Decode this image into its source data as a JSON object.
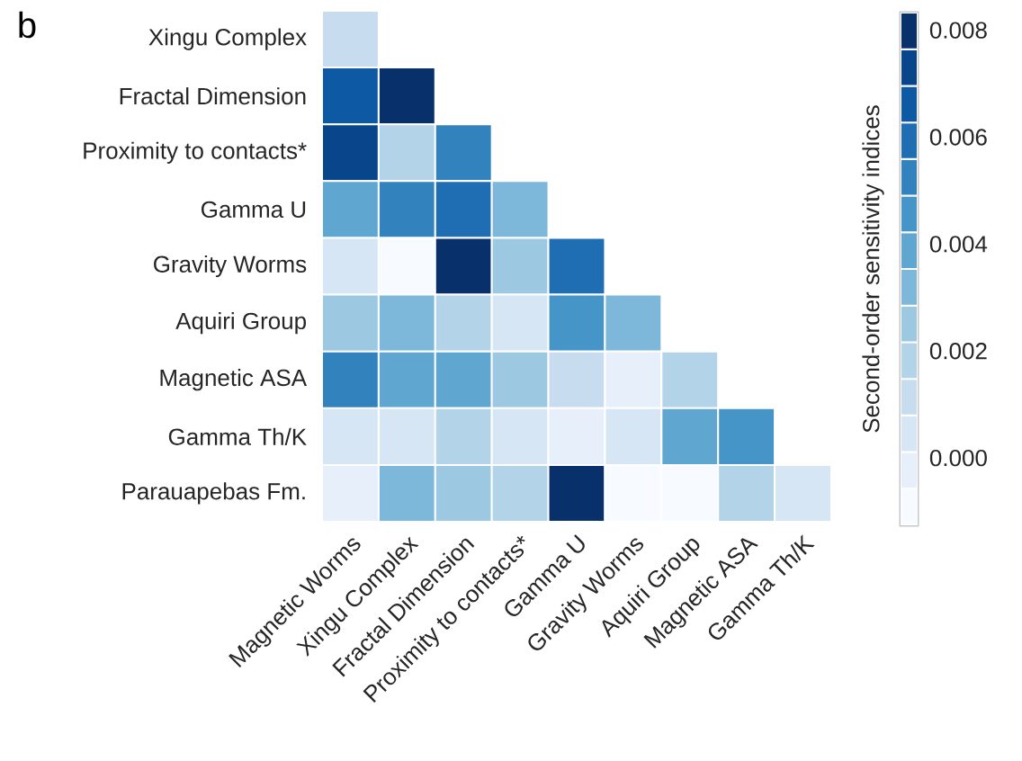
{
  "chart_data": {
    "type": "heatmap",
    "annotations": [
      "b"
    ],
    "categories": [
      "Magnetic Worms",
      "Xingu Complex",
      "Fractal Dimension",
      "Proximity to contacts*",
      "Gamma U",
      "Gravity Worms",
      "Aquiri Group",
      "Magnetic ASA",
      "Gamma Th/K"
    ],
    "y_categories": [
      "Xingu Complex",
      "Fractal Dimension",
      "Proximity to contacts*",
      "Gamma U",
      "Gravity Worms",
      "Aquiri Group",
      "Magnetic ASA",
      "Gamma Th/K",
      "Parauapebas Fm."
    ],
    "cells": [
      [
        0.0011,
        null,
        null,
        null,
        null,
        null,
        null,
        null,
        null
      ],
      [
        0.0066,
        0.008,
        null,
        null,
        null,
        null,
        null,
        null,
        null
      ],
      [
        0.0073,
        0.0018,
        0.0053,
        null,
        null,
        null,
        null,
        null,
        null
      ],
      [
        0.0039,
        0.0053,
        0.0059,
        0.0032,
        null,
        null,
        null,
        null,
        null
      ],
      [
        0.0005,
        -0.0009,
        0.008,
        0.0025,
        0.0059,
        null,
        null,
        null,
        null
      ],
      [
        0.0025,
        0.0032,
        0.0018,
        0.0005,
        0.0046,
        0.0032,
        null,
        null,
        null
      ],
      [
        0.0053,
        0.0039,
        0.0039,
        0.0025,
        0.0011,
        -0.0002,
        0.0018,
        null,
        null
      ],
      [
        0.0005,
        0.0005,
        0.0018,
        0.0005,
        -0.0002,
        0.0005,
        0.0039,
        0.0046,
        null
      ],
      [
        -0.0002,
        0.0032,
        0.0025,
        0.0018,
        0.008,
        -0.0009,
        -0.0009,
        0.0018,
        0.0005
      ]
    ],
    "clabel": "Second-order sensitivity indices",
    "clim": [
      -0.00126,
      0.00833
    ],
    "cticks": [
      {
        "value": 0,
        "label": "0.000"
      },
      {
        "value": 0.002,
        "label": "0.002"
      },
      {
        "value": 0.004,
        "label": "0.004"
      },
      {
        "value": 0.006,
        "label": "0.006"
      },
      {
        "value": 0.008,
        "label": "0.008"
      }
    ]
  }
}
